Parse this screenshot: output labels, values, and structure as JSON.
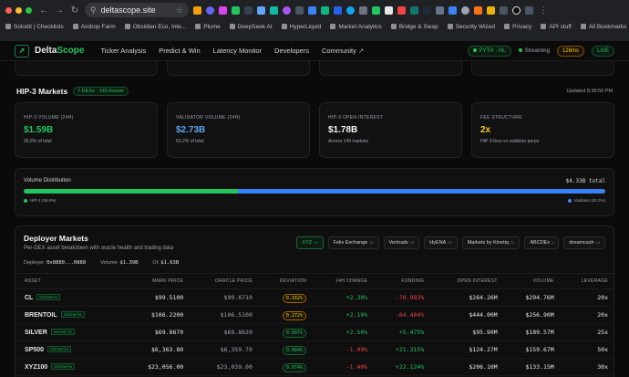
{
  "browser": {
    "url": "deltascope.site",
    "bookmarks": [
      "Solodit | Checklists",
      "Airdrop Farm",
      "Obsidian Eco, Inte...",
      "Plume",
      "DeepSeek AI",
      "HyperLiquid",
      "Market Analytics",
      "Bridge & Swap",
      "Security Wized",
      "Privacy",
      "API stuff"
    ],
    "all_bookmarks": "All Bookmarks"
  },
  "nav": {
    "brand_a": "Delta",
    "brand_b": "Scope",
    "links": [
      "Ticker Analysis",
      "Predict & Win",
      "Latency Monitor",
      "Developers",
      "Community"
    ],
    "pyth_hl": "PYTH · HL",
    "streaming": "Streaming",
    "latency": "128ms",
    "live": "LIVE"
  },
  "hip3": {
    "title": "HIP-3 Markets",
    "badge": "7 DEXs · 149 Assets",
    "updated": "Updated 8:39:50 PM",
    "cards": [
      {
        "label": "HIP-3 VOLUME (24H)",
        "value": "$1.59B",
        "sub": "36.8% of total",
        "color": "#22c55e"
      },
      {
        "label": "VALIDATOR VOLUME (24H)",
        "value": "$2.73B",
        "sub": "63.2% of total",
        "color": "#60a5fa"
      },
      {
        "label": "HIP-3 OPEN INTEREST",
        "value": "$1.78B",
        "sub": "Across 149 markets",
        "color": "#f3f4f6"
      },
      {
        "label": "FEE STRUCTURE",
        "value": "2x",
        "sub": "HIP-3 fees vs validator perps",
        "color": "#facc15"
      }
    ]
  },
  "distribution": {
    "title": "Volume Distribution",
    "total": "$4.33B total",
    "hip3_share": 0.368,
    "hip3_label": "HIP-3 (36.8%)",
    "validator_label": "Validator (63.2%)",
    "green": "#22c55e",
    "blue": "#3b82f6"
  },
  "deployer": {
    "title": "Deployer Markets",
    "subtitle": "Per-DEX asset breakdown with oracle health and trading data",
    "tabs": [
      {
        "name": "XYZ",
        "count": "55"
      },
      {
        "name": "Felix Exchange",
        "count": "16"
      },
      {
        "name": "Ventuals",
        "count": "13"
      },
      {
        "name": "HyENA",
        "count": "26"
      },
      {
        "name": "Markets by Kinetiq",
        "count": "23"
      },
      {
        "name": "ABCDEx",
        "count": "1"
      },
      {
        "name": "dreamcash",
        "count": "16"
      }
    ],
    "deployer_label": "Deployer:",
    "deployer_value": "0x8880...0888",
    "volume_label": "Volume:",
    "volume_value": "$1.39B",
    "oi_label": "OI:",
    "oi_value": "$1.63B",
    "columns": [
      "ASSET",
      "MARK PRICE",
      "ORACLE PRICE",
      "DEVIATION",
      "24H CHANGE",
      "FUNDING",
      "OPEN INTEREST",
      "VOLUME",
      "LEVERAGE"
    ],
    "badge": "GROWTH",
    "rows": [
      {
        "asset": "CL",
        "mark": "$99.5100",
        "oracle": "$99.6710",
        "dev": "0.162%",
        "dev_level": "warn",
        "chg": "+2.30%",
        "fund": "-70.983%",
        "oi": "$264.26M",
        "vol": "$294.76M",
        "lev": "20x"
      },
      {
        "asset": "BRENTOIL",
        "mark": "$106.2200",
        "oracle": "$106.5100",
        "dev": "0.272%",
        "dev_level": "warn",
        "chg": "+2.19%",
        "fund": "-64.404%",
        "oi": "$444.00M",
        "vol": "$256.90M",
        "lev": "20x"
      },
      {
        "asset": "SILVER",
        "mark": "$69.8670",
        "oracle": "$69.8620",
        "dev": "0.007%",
        "dev_level": "ok",
        "chg": "+2.50%",
        "fund": "+5.475%",
        "oi": "$95.90M",
        "vol": "$189.57M",
        "lev": "25x"
      },
      {
        "asset": "SP500",
        "mark": "$6,363.80",
        "oracle": "$6,359.70",
        "dev": "0.064%",
        "dev_level": "ok",
        "chg": "-1.09%",
        "fund": "+21.315%",
        "oi": "$124.27M",
        "vol": "$159.67M",
        "lev": "50x"
      },
      {
        "asset": "XYZ100",
        "mark": "$23,056.00",
        "oracle": "$23,039.00",
        "dev": "0.074%",
        "dev_level": "ok",
        "chg": "-1.40%",
        "fund": "+22.124%",
        "oi": "$206.10M",
        "vol": "$133.15M",
        "lev": "30x"
      }
    ]
  }
}
